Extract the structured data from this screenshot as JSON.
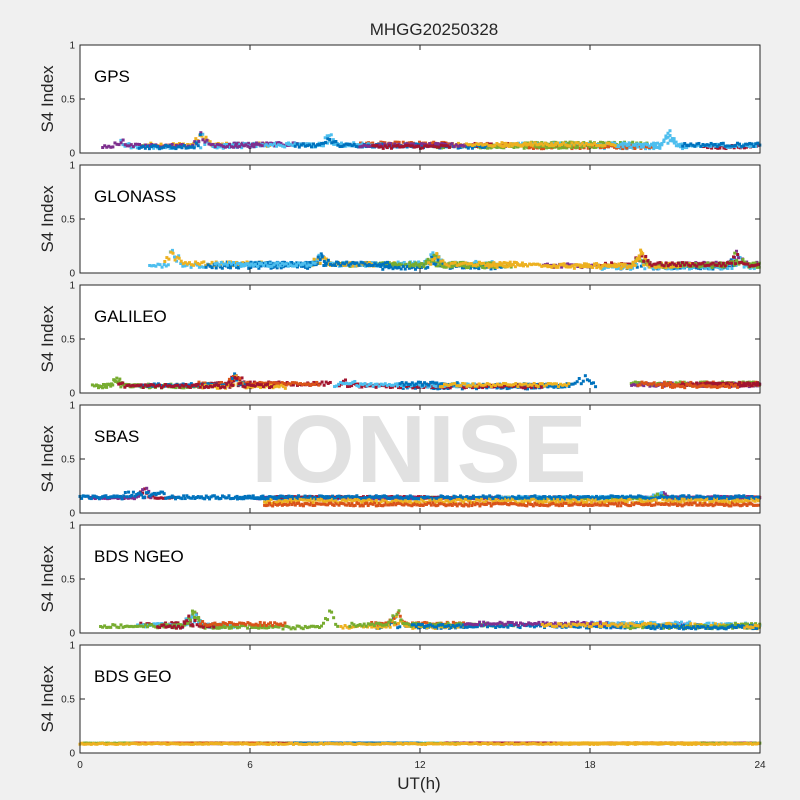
{
  "chart_data": {
    "type": "scatter",
    "title": "MHGG20250328",
    "xlabel": "UT(h)",
    "xlim": [
      0,
      24
    ],
    "xticks": [
      "0",
      "6",
      "12",
      "18",
      "24"
    ],
    "ylim": [
      0,
      1
    ],
    "yticks": [
      "0",
      "0.5",
      "1"
    ],
    "watermark": "IONISE",
    "colors": [
      "#0072BD",
      "#D95319",
      "#EDB120",
      "#7E2F8E",
      "#77AC30",
      "#4DBEEE",
      "#A2142F"
    ],
    "panels": [
      {
        "name": "GPS",
        "ylabel": "S4 Index",
        "baseline": 0.07,
        "spread": 0.035,
        "peaks": [
          [
            1.5,
            0.14
          ],
          [
            4.3,
            0.22
          ],
          [
            8.8,
            0.17
          ],
          [
            20.8,
            0.22
          ]
        ]
      },
      {
        "name": "GLONASS",
        "ylabel": "S4 Index",
        "baseline": 0.07,
        "spread": 0.04,
        "peaks": [
          [
            3.3,
            0.24
          ],
          [
            8.5,
            0.19
          ],
          [
            12.5,
            0.19
          ],
          [
            19.8,
            0.2
          ],
          [
            23.2,
            0.21
          ]
        ]
      },
      {
        "name": "GALILEO",
        "ylabel": "S4 Index",
        "baseline": 0.07,
        "spread": 0.035,
        "peaks": [
          [
            1.3,
            0.15
          ],
          [
            5.5,
            0.18
          ],
          [
            9.5,
            0.16
          ],
          [
            17.8,
            0.21
          ]
        ]
      },
      {
        "name": "SBAS",
        "ylabel": "S4 Index",
        "baseline": 0.14,
        "spread": 0.015,
        "peaks": [
          [
            2.3,
            0.25
          ],
          [
            20.5,
            0.2
          ]
        ]
      },
      {
        "name": "BDS NGEO",
        "ylabel": "S4 Index",
        "baseline": 0.07,
        "spread": 0.035,
        "peaks": [
          [
            4.0,
            0.24
          ],
          [
            8.8,
            0.24
          ],
          [
            11.2,
            0.22
          ]
        ]
      },
      {
        "name": "BDS GEO",
        "ylabel": "S4 Index",
        "baseline": 0.09,
        "spread": 0.005,
        "peaks": []
      }
    ]
  }
}
